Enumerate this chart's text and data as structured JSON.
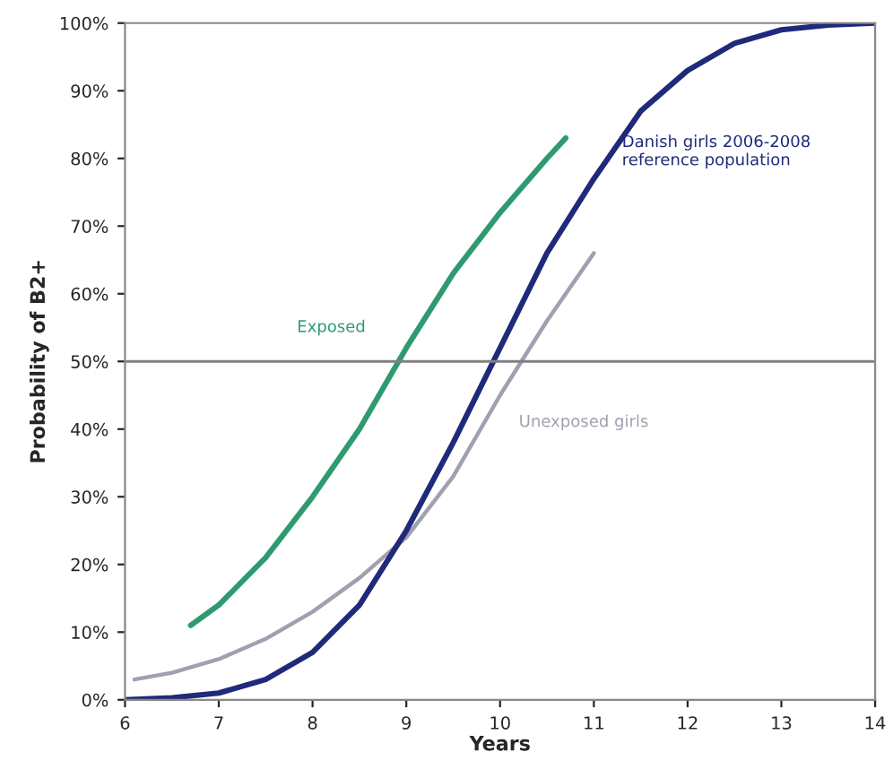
{
  "chart_data": {
    "type": "line",
    "xlabel": "Years",
    "ylabel": "Probability of B2+",
    "series": [
      {
        "name": "Exposed",
        "color": "#2e9a70",
        "x": [
          6.7,
          7,
          7.5,
          8,
          8.5,
          9,
          9.5,
          10,
          10.5,
          10.7
        ],
        "values": [
          11,
          14,
          21,
          30,
          40,
          52,
          63,
          72,
          80,
          83
        ]
      },
      {
        "name": "Unexposed girls",
        "color": "#a0a0b0",
        "x": [
          6.1,
          6.5,
          7,
          7.5,
          8,
          8.5,
          9,
          9.5,
          10,
          10.5,
          11
        ],
        "values": [
          3,
          4,
          6,
          9,
          13,
          18,
          24,
          33,
          45,
          56,
          66
        ]
      },
      {
        "name": "Danish girls 2006-2008 reference population",
        "color": "#1f2a7a",
        "x": [
          6,
          6.5,
          7,
          7.5,
          8,
          8.5,
          9,
          9.5,
          10,
          10.5,
          11,
          11.5,
          12,
          12.5,
          13,
          13.5,
          14
        ],
        "values": [
          0,
          0.3,
          1,
          3,
          7,
          14,
          25,
          38,
          52,
          66,
          77,
          87,
          93,
          97,
          99,
          99.7,
          100
        ]
      }
    ],
    "xlim": [
      6,
      14
    ],
    "xticks": [
      6,
      7,
      8,
      9,
      10,
      11,
      12,
      13,
      14
    ],
    "ylim": [
      0,
      100
    ],
    "yticks": [
      {
        "value": 0,
        "label": "0%"
      },
      {
        "value": 10,
        "label": "10%"
      },
      {
        "value": 20,
        "label": "20%"
      },
      {
        "value": 30,
        "label": "30%"
      },
      {
        "value": 40,
        "label": "40%"
      },
      {
        "value": 50,
        "label": "50%"
      },
      {
        "value": 60,
        "label": "60%"
      },
      {
        "value": 70,
        "label": "70%"
      },
      {
        "value": 80,
        "label": "80%"
      },
      {
        "value": 90,
        "label": "90%"
      },
      {
        "value": 100,
        "label": "100%"
      }
    ],
    "ref_lines": [
      {
        "axis": "y",
        "value": 50,
        "color": "#808080"
      }
    ],
    "grid": false,
    "legend": false,
    "marker": "none",
    "line_style": "solid"
  }
}
